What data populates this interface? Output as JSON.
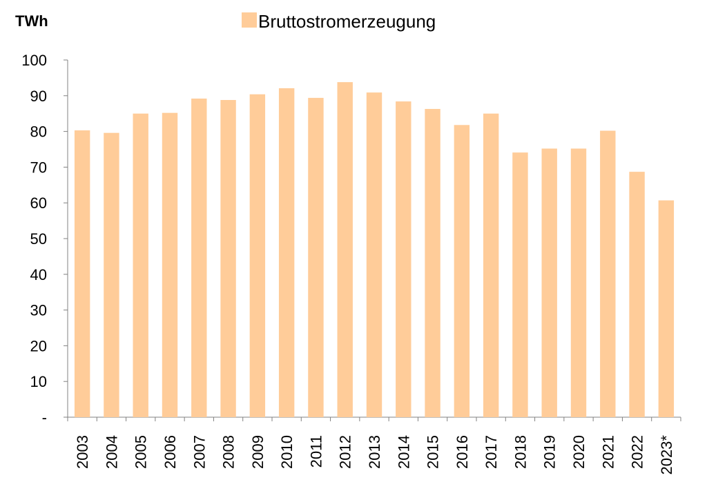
{
  "chart_data": {
    "type": "bar",
    "ylabel": "TWh",
    "legend": {
      "position": "top-center",
      "entries": [
        "Bruttostromerzeugung"
      ]
    },
    "series": [
      {
        "name": "Bruttostromerzeugung",
        "color": "#FFCC99",
        "values": [
          80.3,
          79.6,
          85.0,
          85.2,
          89.2,
          88.8,
          90.4,
          92.1,
          89.4,
          93.8,
          90.9,
          88.4,
          86.3,
          81.8,
          85.0,
          74.1,
          75.2,
          75.2,
          80.2,
          68.7,
          60.7
        ]
      }
    ],
    "categories": [
      "2003",
      "2004",
      "2005",
      "2006",
      "2007",
      "2008",
      "2009",
      "2010",
      "2011",
      "2012",
      "2013",
      "2014",
      "2015",
      "2016",
      "2017",
      "2018",
      "2019",
      "2020",
      "2021",
      "2022",
      "2023*"
    ],
    "ylim": [
      0,
      100
    ],
    "yticks": [
      0,
      10,
      20,
      30,
      40,
      50,
      60,
      70,
      80,
      90,
      100
    ],
    "ytick_labels": [
      "-",
      "10",
      "20",
      "30",
      "40",
      "50",
      "60",
      "70",
      "80",
      "90",
      "100"
    ],
    "grid": false
  }
}
